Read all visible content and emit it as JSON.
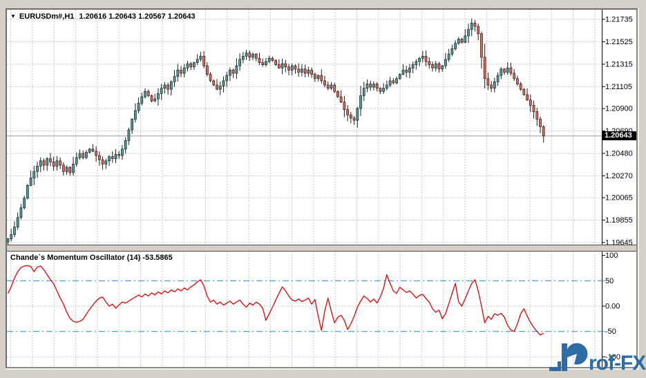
{
  "chart": {
    "dropdown_icon": "▼",
    "symbol_period": "EURUSDm#,H1",
    "ohlc_text": "1.20616 1.20643 1.20567 1.20643"
  },
  "price_axis": {
    "labels": [
      "1.21735",
      "1.21525",
      "1.21315",
      "1.21105",
      "1.20900",
      "1.20690",
      "1.20480",
      "1.20270",
      "1.20065",
      "1.19855",
      "1.19645"
    ],
    "current_price_label": "1.20643"
  },
  "indicator": {
    "title": "Chande`s Momentum Oscillator (14) -53.5865",
    "axis_labels": [
      "100",
      "50",
      "0.00",
      "-50",
      "-100"
    ],
    "axis_values": [
      100,
      50,
      0,
      -50,
      -100
    ]
  },
  "logo": {
    "text": "rof-FX"
  },
  "colors": {
    "bull": "#4a9e99",
    "bear": "#e96455",
    "outline": "#1b1b1b",
    "wick": "#1b1b1b",
    "osc_line": "#dd1111",
    "level_line": "#2e97f2",
    "grid": "#c6c6c6",
    "current_line": "#9a9a9a",
    "axis_text": "#000000",
    "logo_blue": "#2d6ca5",
    "tag_bg": "#000000",
    "tag_text": "#ffffff"
  },
  "chart_data": [
    {
      "type": "candlestick",
      "title": "EURUSDm#,H1",
      "ohlc_display": {
        "open": 1.20616,
        "high": 1.20643,
        "low": 1.20567,
        "close": 1.20643
      },
      "current_price": 1.20643,
      "yaxis": {
        "ticks": [
          1.21735,
          1.21525,
          1.21315,
          1.21105,
          1.209,
          1.2069,
          1.2048,
          1.2027,
          1.20065,
          1.19855,
          1.19645
        ]
      },
      "open_first": 1.1965,
      "closes": [
        1.1968,
        1.1972,
        1.1979,
        1.1988,
        1.1997,
        1.2006,
        1.2018,
        1.2025,
        1.2031,
        1.2036,
        1.2041,
        1.2037,
        1.2043,
        1.204,
        1.2036,
        1.2041,
        1.2037,
        1.2031,
        1.2035,
        1.203,
        1.2038,
        1.2044,
        1.2048,
        1.2044,
        1.2049,
        1.2052,
        1.205,
        1.2046,
        1.2042,
        1.2038,
        1.2041,
        1.2045,
        1.2043,
        1.2047,
        1.2046,
        1.2052,
        1.206,
        1.207,
        1.208,
        1.2088,
        1.2095,
        1.2101,
        1.2106,
        1.2102,
        1.2097,
        1.2099,
        1.2104,
        1.2109,
        1.2112,
        1.2108,
        1.2115,
        1.212,
        1.2126,
        1.2123,
        1.2128,
        1.2132,
        1.2129,
        1.2133,
        1.2136,
        1.2139,
        1.213,
        1.2122,
        1.2116,
        1.2112,
        1.2108,
        1.2111,
        1.2116,
        1.2121,
        1.2126,
        1.2123,
        1.213,
        1.2136,
        1.2139,
        1.2142,
        1.2138,
        1.2141,
        1.2137,
        1.2133,
        1.2131,
        1.2134,
        1.2137,
        1.2135,
        1.2131,
        1.2128,
        1.2132,
        1.2129,
        1.2126,
        1.213,
        1.2127,
        1.2124,
        1.2127,
        1.2123,
        1.2126,
        1.2122,
        1.2118,
        1.2121,
        1.2116,
        1.2112,
        1.2109,
        1.2112,
        1.2106,
        1.2101,
        1.2096,
        1.2089,
        1.2084,
        1.2081,
        1.2079,
        1.209,
        1.2102,
        1.2109,
        1.2113,
        1.211,
        1.2113,
        1.2109,
        1.2106,
        1.2109,
        1.2112,
        1.2116,
        1.2114,
        1.2118,
        1.2122,
        1.2126,
        1.2124,
        1.2128,
        1.2131,
        1.2134,
        1.2137,
        1.2139,
        1.2134,
        1.2131,
        1.2128,
        1.2132,
        1.2127,
        1.213,
        1.2136,
        1.2141,
        1.2146,
        1.2151,
        1.2155,
        1.2152,
        1.2158,
        1.2164,
        1.217,
        1.2167,
        1.216,
        1.2138,
        1.2118,
        1.2112,
        1.2109,
        1.2115,
        1.2121,
        1.2127,
        1.2124,
        1.2128,
        1.2123,
        1.2118,
        1.2113,
        1.2108,
        1.2103,
        1.2098,
        1.2093,
        1.2087,
        1.208,
        1.2073,
        1.20643
      ]
    },
    {
      "type": "line",
      "name": "Chande`s Momentum Oscillator",
      "period": 14,
      "last_value": -53.5865,
      "ylim": [
        -100,
        100
      ],
      "levels": [
        50,
        -50
      ],
      "values": [
        25,
        38,
        55,
        68,
        76,
        79,
        80,
        78,
        68,
        77,
        79,
        72,
        62,
        52,
        44,
        30,
        16,
        4,
        -12,
        -24,
        -30,
        -32,
        -30,
        -26,
        -16,
        -6,
        2,
        10,
        16,
        18,
        8,
        0,
        4,
        -4,
        2,
        8,
        6,
        10,
        14,
        18,
        22,
        18,
        24,
        20,
        26,
        22,
        28,
        24,
        30,
        26,
        32,
        28,
        34,
        30,
        36,
        32,
        38,
        42,
        48,
        52,
        40,
        20,
        8,
        12,
        4,
        8,
        2,
        6,
        10,
        4,
        8,
        12,
        4,
        -2,
        6,
        2,
        8,
        4,
        -4,
        -28,
        -15,
        -2,
        12,
        25,
        38,
        30,
        20,
        12,
        10,
        14,
        9,
        12,
        16,
        4,
        13,
        -20,
        -48,
        -10,
        16,
        -10,
        -33,
        -22,
        -18,
        -28,
        -46,
        -35,
        -20,
        -2,
        10,
        20,
        15,
        8,
        14,
        6,
        18,
        35,
        62,
        45,
        30,
        25,
        37,
        32,
        27,
        30,
        24,
        16,
        21,
        23,
        15,
        8,
        -5,
        -12,
        -8,
        -25,
        -15,
        5,
        25,
        45,
        8,
        0,
        15,
        30,
        45,
        52,
        30,
        0,
        -33,
        -20,
        -26,
        -15,
        -18,
        -14,
        -22,
        -38,
        -47,
        -50,
        -35,
        -15,
        -5,
        -20,
        -32,
        -42,
        -50,
        -57,
        -53.59
      ]
    }
  ]
}
